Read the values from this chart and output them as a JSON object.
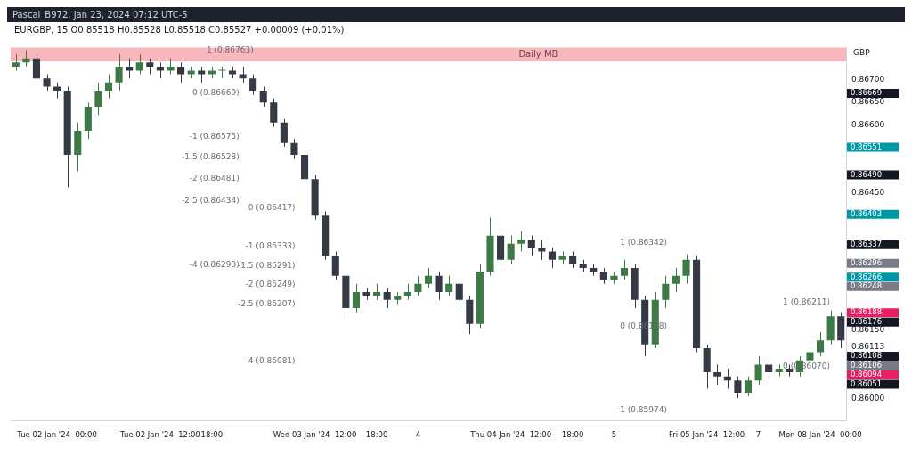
{
  "chart_data": {
    "type": "candlestick",
    "title": "Pascal_B972, Jan 23, 2024 07:12 UTC-5",
    "subtitle": "EURGBP, 15   O0.85518 H0.85528 L0.85518 C0.85527 +0.00009 (+0.01%)",
    "ylabel": "GBP",
    "categories": [
      null,
      null,
      null,
      null,
      "Tue 02 Jan '24  00:00",
      null,
      null,
      null,
      null,
      null,
      null,
      null,
      null,
      null,
      "Tue 02 Jan '24  12:00",
      null,
      null,
      null,
      null,
      "18:00",
      null,
      null,
      null,
      null,
      null,
      null,
      null,
      null,
      null,
      "Wed 03 Jan '24  12:00",
      null,
      null,
      null,
      null,
      null,
      "18:00",
      null,
      null,
      null,
      "4",
      null,
      null,
      null,
      null,
      null,
      null,
      null,
      null,
      "Thu 04 Jan '24  12:00",
      null,
      null,
      null,
      null,
      null,
      "18:00",
      null,
      null,
      null,
      "5",
      null,
      null,
      null,
      null,
      null,
      null,
      null,
      null,
      "Fri 05 Jan '24  12:00",
      null,
      null,
      null,
      null,
      "7",
      null,
      null,
      null,
      null,
      null,
      "Mon 08 Jan '24  00:00",
      null,
      null
    ],
    "ohlc": [
      [
        0.86728,
        0.86755,
        0.86719,
        0.86737
      ],
      [
        0.86737,
        0.86764,
        0.86728,
        0.86746
      ],
      [
        0.86746,
        0.86755,
        0.86693,
        0.86702
      ],
      [
        0.86702,
        0.86711,
        0.86675,
        0.86684
      ],
      [
        0.86684,
        0.86693,
        0.86658,
        0.86675
      ],
      [
        0.86675,
        0.86684,
        0.86463,
        0.86534
      ],
      [
        0.86534,
        0.86605,
        0.86498,
        0.86587
      ],
      [
        0.86587,
        0.86649,
        0.86569,
        0.8664
      ],
      [
        0.8664,
        0.86693,
        0.86622,
        0.86675
      ],
      [
        0.86675,
        0.86711,
        0.86658,
        0.86693
      ],
      [
        0.86693,
        0.86755,
        0.86675,
        0.86728
      ],
      [
        0.86728,
        0.86746,
        0.86702,
        0.86719
      ],
      [
        0.86719,
        0.86755,
        0.86711,
        0.86737
      ],
      [
        0.86737,
        0.86746,
        0.86711,
        0.86728
      ],
      [
        0.86728,
        0.86737,
        0.86702,
        0.86719
      ],
      [
        0.86719,
        0.86746,
        0.86711,
        0.86728
      ],
      [
        0.86728,
        0.86737,
        0.86693,
        0.86711
      ],
      [
        0.86711,
        0.86728,
        0.86702,
        0.86719
      ],
      [
        0.86719,
        0.86728,
        0.86693,
        0.86711
      ],
      [
        0.86711,
        0.86728,
        0.86702,
        0.86719
      ],
      [
        0.86719,
        0.86728,
        0.86702,
        0.86719
      ],
      [
        0.86719,
        0.86728,
        0.86702,
        0.86711
      ],
      [
        0.86711,
        0.86728,
        0.86693,
        0.86702
      ],
      [
        0.86702,
        0.86711,
        0.86666,
        0.86675
      ],
      [
        0.86675,
        0.86684,
        0.8664,
        0.86649
      ],
      [
        0.86649,
        0.86658,
        0.86596,
        0.86605
      ],
      [
        0.86605,
        0.86613,
        0.86552,
        0.8656
      ],
      [
        0.8656,
        0.86569,
        0.86525,
        0.86534
      ],
      [
        0.86534,
        0.86543,
        0.86472,
        0.86481
      ],
      [
        0.86481,
        0.8649,
        0.86392,
        0.86401
      ],
      [
        0.86401,
        0.8641,
        0.86304,
        0.86313
      ],
      [
        0.86313,
        0.86322,
        0.8626,
        0.86269
      ],
      [
        0.86269,
        0.86278,
        0.86171,
        0.86198
      ],
      [
        0.86198,
        0.86251,
        0.86189,
        0.86233
      ],
      [
        0.86233,
        0.86242,
        0.86216,
        0.86225
      ],
      [
        0.86225,
        0.86251,
        0.86216,
        0.86233
      ],
      [
        0.86233,
        0.86242,
        0.86198,
        0.86216
      ],
      [
        0.86216,
        0.86233,
        0.86207,
        0.86225
      ],
      [
        0.86225,
        0.86251,
        0.86216,
        0.86233
      ],
      [
        0.86233,
        0.86269,
        0.86225,
        0.86251
      ],
      [
        0.86251,
        0.86286,
        0.86242,
        0.86269
      ],
      [
        0.86269,
        0.86278,
        0.86216,
        0.86233
      ],
      [
        0.86233,
        0.86269,
        0.86225,
        0.86251
      ],
      [
        0.86251,
        0.8626,
        0.86198,
        0.86216
      ],
      [
        0.86216,
        0.86225,
        0.86141,
        0.86163
      ],
      [
        0.86163,
        0.86295,
        0.86154,
        0.86278
      ],
      [
        0.86278,
        0.86396,
        0.86269,
        0.86357
      ],
      [
        0.86357,
        0.86366,
        0.86286,
        0.86304
      ],
      [
        0.86304,
        0.86357,
        0.86295,
        0.86339
      ],
      [
        0.86339,
        0.86366,
        0.86322,
        0.86348
      ],
      [
        0.86348,
        0.86357,
        0.86313,
        0.86331
      ],
      [
        0.86331,
        0.86348,
        0.86304,
        0.86322
      ],
      [
        0.86322,
        0.86331,
        0.86286,
        0.86304
      ],
      [
        0.86304,
        0.86322,
        0.86295,
        0.86313
      ],
      [
        0.86313,
        0.86322,
        0.86286,
        0.86295
      ],
      [
        0.86295,
        0.86304,
        0.86278,
        0.86286
      ],
      [
        0.86286,
        0.86295,
        0.86269,
        0.86278
      ],
      [
        0.86278,
        0.86286,
        0.86251,
        0.8626
      ],
      [
        0.8626,
        0.86278,
        0.86251,
        0.86269
      ],
      [
        0.86269,
        0.86304,
        0.8626,
        0.86286
      ],
      [
        0.86286,
        0.86295,
        0.86198,
        0.86216
      ],
      [
        0.86216,
        0.86225,
        0.86092,
        0.86118
      ],
      [
        0.86118,
        0.86233,
        0.8611,
        0.86216
      ],
      [
        0.86216,
        0.86269,
        0.86198,
        0.86251
      ],
      [
        0.86251,
        0.86286,
        0.86233,
        0.86269
      ],
      [
        0.86269,
        0.86316,
        0.86251,
        0.86304
      ],
      [
        0.86304,
        0.86313,
        0.86101,
        0.8611
      ],
      [
        0.8611,
        0.86118,
        0.86021,
        0.86057
      ],
      [
        0.86057,
        0.86074,
        0.8603,
        0.86048
      ],
      [
        0.86048,
        0.86065,
        0.86021,
        0.86039
      ],
      [
        0.86039,
        0.86048,
        0.86,
        0.86012
      ],
      [
        0.86012,
        0.86048,
        0.86004,
        0.86039
      ],
      [
        0.86039,
        0.86092,
        0.8603,
        0.86074
      ],
      [
        0.86074,
        0.86083,
        0.86039,
        0.86057
      ],
      [
        0.86057,
        0.86074,
        0.86048,
        0.86065
      ],
      [
        0.86065,
        0.86074,
        0.86048,
        0.86057
      ],
      [
        0.86057,
        0.86092,
        0.86048,
        0.86083
      ],
      [
        0.86083,
        0.86118,
        0.86074,
        0.86101
      ],
      [
        0.86101,
        0.86145,
        0.86092,
        0.86127
      ],
      [
        0.86127,
        0.86193,
        0.86118,
        0.8618
      ],
      [
        0.8618,
        0.86189,
        0.8611,
        0.86127
      ]
    ],
    "colors": [
      "#3d7a45",
      "#3d7a45",
      "#363a45",
      "#363a45",
      "#363a45",
      "#363a45",
      "#3d7a45",
      "#3d7a45",
      "#3d7a45",
      "#3d7a45",
      "#3d7a45",
      "#363a45",
      "#3d7a45",
      "#363a45",
      "#363a45",
      "#3d7a45",
      "#363a45",
      "#3d7a45",
      "#363a45",
      "#3d7a45",
      "#3d7a45",
      "#363a45",
      "#363a45",
      "#363a45",
      "#363a45",
      "#363a45",
      "#363a45",
      "#363a45",
      "#363a45",
      "#363a45",
      "#363a45",
      "#363a45",
      "#363a45",
      "#3d7a45",
      "#363a45",
      "#3d7a45",
      "#363a45",
      "#3d7a45",
      "#3d7a45",
      "#3d7a45",
      "#3d7a45",
      "#363a45",
      "#3d7a45",
      "#363a45",
      "#363a45",
      "#3d7a45",
      "#3d7a45",
      "#363a45",
      "#3d7a45",
      "#3d7a45",
      "#363a45",
      "#363a45",
      "#363a45",
      "#3d7a45",
      "#363a45",
      "#363a45",
      "#363a45",
      "#363a45",
      "#3d7a45",
      "#3d7a45",
      "#363a45",
      "#363a45",
      "#3d7a45",
      "#3d7a45",
      "#3d7a45",
      "#3d7a45",
      "#363a45",
      "#363a45",
      "#363a45",
      "#363a45",
      "#363a45",
      "#3d7a45",
      "#3d7a45",
      "#363a45",
      "#3d7a45",
      "#363a45",
      "#3d7a45",
      "#3d7a45",
      "#3d7a45",
      "#3d7a45",
      "#363a45"
    ],
    "ylim": [
      0.8595,
      0.8677
    ],
    "yticks": [
      {
        "value": 0.86,
        "label": "0.86000"
      },
      {
        "value": 0.86113,
        "label": "0.86113"
      },
      {
        "value": 0.8615,
        "label": "0.86150"
      },
      {
        "value": 0.8645,
        "label": "0.86450"
      },
      {
        "value": 0.866,
        "label": "0.86600"
      },
      {
        "value": 0.8665,
        "label": "0.86650"
      },
      {
        "value": 0.867,
        "label": "0.86700"
      }
    ],
    "bands": [
      {
        "axis": "y",
        "from": 0.8674,
        "to": 0.8677,
        "label": "Daily MB",
        "color": "#f7b7bc"
      }
    ],
    "annotations": [
      "1 (0.86763)",
      "0 (0.86669)",
      "-1 (0.86575)",
      "-1.5 (0.86528)",
      "-2 (0.86481)",
      "-2.5 (0.86434)",
      "-4 (0.86293)",
      "0 (0.86417)",
      "-1 (0.86333)",
      "-1.5 (0.86291)",
      "-2 (0.86249)",
      "-2.5 (0.86207)",
      "-4 (0.86081)",
      "1 (0.86342)",
      "0 (0.86158)",
      "-1 (0.85974)",
      "1 (0.86211)",
      "0 (0.86070)",
      "0.86669",
      "0.86551",
      "0.86490",
      "0.86403",
      "0.86337",
      "0.86296",
      "0.86266",
      "0.86248",
      "0.86188",
      "0.86176",
      "0.86108",
      "0.86106",
      "0.86094",
      "0.86051"
    ]
  }
}
